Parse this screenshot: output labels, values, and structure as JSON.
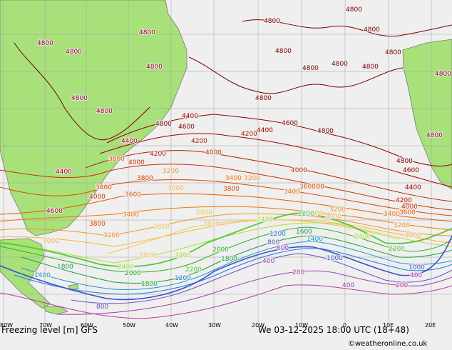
{
  "map": {
    "title": "Freezing level [m] GFS",
    "datetime": "We 03-12-2025 18:00 UTC (18+48)",
    "credit": "©weatheronline.co.uk",
    "longitude_labels": [
      "80W",
      "70W",
      "60W",
      "50W",
      "40W",
      "30W",
      "20W",
      "10W",
      "0",
      "10E",
      "20E"
    ],
    "contour_levels": [
      {
        "value": "4800",
        "color": "#7a0000"
      },
      {
        "value": "4600",
        "color": "#8b0000"
      },
      {
        "value": "4400",
        "color": "#a00000"
      },
      {
        "value": "4200",
        "color": "#b41e00"
      },
      {
        "value": "4000",
        "color": "#c83200"
      },
      {
        "value": "3800",
        "color": "#dc4600"
      },
      {
        "value": "3600",
        "color": "#e65a00"
      },
      {
        "value": "3400",
        "color": "#f07800"
      },
      {
        "value": "3200",
        "color": "#f5961e"
      },
      {
        "value": "3000",
        "color": "#f8b43c"
      },
      {
        "value": "2800",
        "color": "#f0c850"
      },
      {
        "value": "2400",
        "color": "#b4dc32"
      },
      {
        "value": "2200",
        "color": "#50c83c"
      },
      {
        "value": "2000",
        "color": "#28b428"
      },
      {
        "value": "1800",
        "color": "#14a03c"
      },
      {
        "value": "1600",
        "color": "#148c64"
      },
      {
        "value": "1400",
        "color": "#1e96c8"
      },
      {
        "value": "1200",
        "color": "#1e78dc"
      },
      {
        "value": "1000",
        "color": "#3c50c8"
      },
      {
        "value": "800",
        "color": "#6450c8"
      },
      {
        "value": "600",
        "color": "#8c3cc8"
      },
      {
        "value": "400",
        "color": "#a03cb4"
      },
      {
        "value": "200",
        "color": "#b43ca0"
      }
    ],
    "colors": {
      "ocean": "#efefef",
      "land": "#a8e07a",
      "coast": "#7a7a7a",
      "grid": "#a0a0a0"
    }
  }
}
